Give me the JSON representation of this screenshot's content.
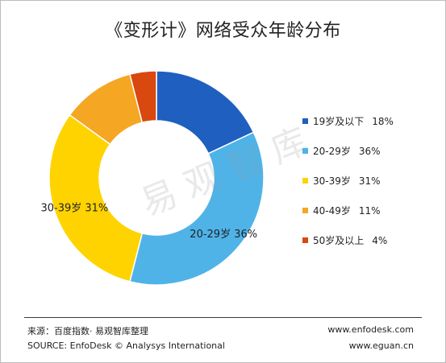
{
  "chart_data": {
    "type": "donut",
    "title": "《变形计》网络受众年龄分布",
    "categories": [
      "19岁及以下",
      "20-29岁",
      "30-39岁",
      "40-49岁",
      "50岁及以上"
    ],
    "values": [
      18,
      36,
      31,
      11,
      4
    ],
    "value_labels": [
      "18%",
      "36%",
      "31%",
      "11%",
      "4%"
    ],
    "colors": [
      "#1F5FC0",
      "#4FB3E8",
      "#FFD300",
      "#F5A623",
      "#D9480F"
    ],
    "data_labels_on_chart": [
      {
        "index": 1,
        "text": "20-29岁  36%"
      },
      {
        "index": 2,
        "text": "30-39岁  31%"
      }
    ],
    "legend_position": "right"
  },
  "watermark": "易观智库",
  "footer": {
    "source_cn": "来源：百度指数· 易观智库整理",
    "source_en": "SOURCE: EnfoDesk © Analysys International",
    "site1": "www.enfodesk.com",
    "site2": "www.eguan.cn"
  }
}
